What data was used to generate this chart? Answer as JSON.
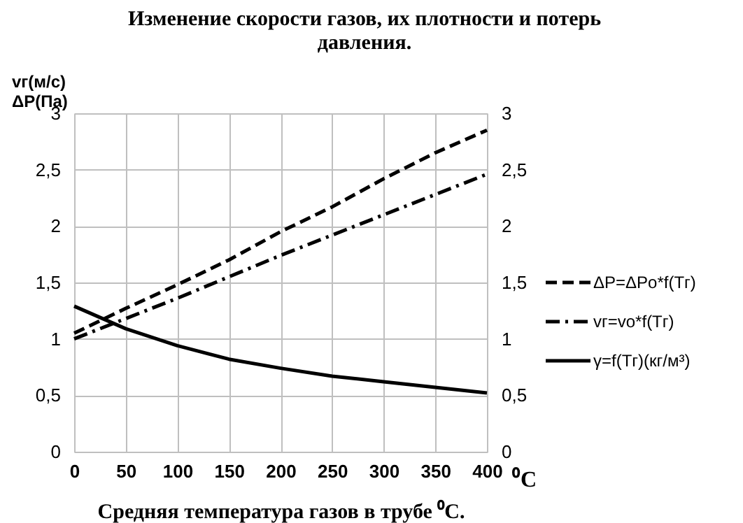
{
  "chart_data": {
    "type": "line",
    "title": [
      "Изменение скорости газов, их плотности и потерь",
      "давления."
    ],
    "xlabel": "Средняя температура газов в трубе ⁰С.",
    "ylabel": [
      "vг(м/с)",
      "ΔP(Па)"
    ],
    "x": [
      0,
      50,
      100,
      150,
      200,
      250,
      300,
      350,
      400
    ],
    "series": [
      {
        "name": "ΔP=ΔPо*f(Tг)",
        "color": "#000000",
        "line_style": "dashed",
        "values": [
          1.05,
          1.27,
          1.48,
          1.7,
          1.95,
          2.17,
          2.42,
          2.65,
          2.85
        ]
      },
      {
        "name": "vг=vо*f(Tг)",
        "color": "#000000",
        "line_style": "dashdot",
        "values": [
          1.0,
          1.18,
          1.36,
          1.55,
          1.74,
          1.92,
          2.1,
          2.28,
          2.46
        ]
      },
      {
        "name": "γ=f(Tг)(кг/м³)",
        "color": "#000000",
        "line_style": "solid",
        "values": [
          1.29,
          1.09,
          0.94,
          0.82,
          0.74,
          0.67,
          0.62,
          0.57,
          0.52
        ]
      }
    ],
    "xlim": [
      0,
      400
    ],
    "xticks": [
      0,
      50,
      100,
      150,
      200,
      250,
      300,
      350,
      400
    ],
    "ylim": [
      0,
      3
    ],
    "yticks": [
      0,
      {
        "value": 0.5,
        "label": "0,5"
      },
      1,
      {
        "value": 1.5,
        "label": "1,5"
      },
      2,
      {
        "value": 2.5,
        "label": "2,5"
      },
      3
    ],
    "y2lim": [
      0,
      3
    ],
    "y2ticks": [
      0,
      {
        "value": 0.5,
        "label": "0,5"
      },
      1,
      {
        "value": 1.5,
        "label": "1,5"
      },
      2,
      {
        "value": 2.5,
        "label": "2,5"
      },
      3
    ],
    "annotations": [
      "⁰C"
    ],
    "grid": true,
    "legend": "right",
    "marker": "none"
  }
}
